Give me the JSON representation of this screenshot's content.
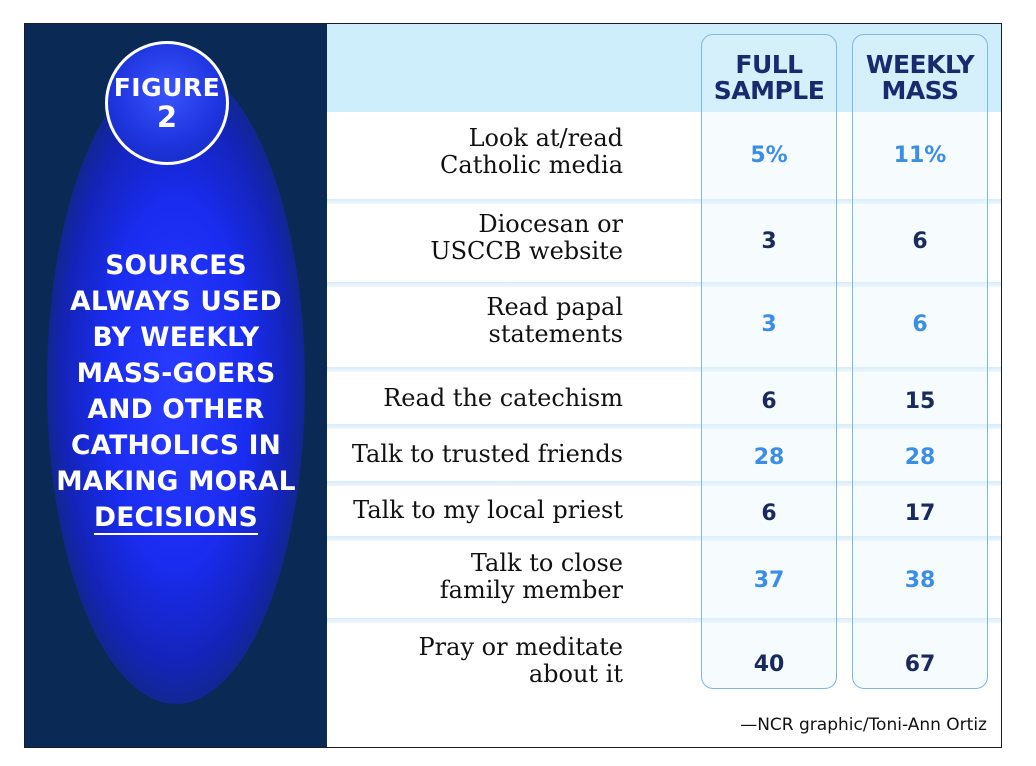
{
  "figure": {
    "label": "FIGURE",
    "number": "2"
  },
  "headline": {
    "lines": [
      "SOURCES",
      "ALWAYS USED",
      "BY WEEKLY",
      "MASS-GOERS",
      "AND OTHER",
      "CATHOLICS IN",
      "MAKING MORAL"
    ],
    "last_line": "DECISIONS"
  },
  "columns": [
    {
      "line1": "FULL",
      "line2": "SAMPLE"
    },
    {
      "line1": "WEEKLY",
      "line2": "MASS"
    }
  ],
  "credit": "—NCR graphic/Toni-Ann Ortiz",
  "colors": {
    "left_panel": "#0a2a55",
    "glow": "#1a2cf0",
    "header_band": "#cdeefa",
    "highlight_value": "#3a8ee6",
    "dark_value": "#1a2a5e"
  },
  "chart_data": {
    "type": "table",
    "title": "SOURCES ALWAYS USED BY WEEKLY MASS-GOERS AND OTHER CATHOLICS IN MAKING MORAL DECISIONS",
    "columns": [
      "FULL SAMPLE",
      "WEEKLY MASS"
    ],
    "rows": [
      {
        "label_lines": [
          "Look at/read",
          "Catholic media"
        ],
        "full_sample": "5%",
        "weekly_mass": "11%"
      },
      {
        "label_lines": [
          "Diocesan or",
          "USCCB website"
        ],
        "full_sample": "3",
        "weekly_mass": "6"
      },
      {
        "label_lines": [
          "Read papal",
          "statements"
        ],
        "full_sample": "3",
        "weekly_mass": "6"
      },
      {
        "label_lines": [
          "Read the catechism"
        ],
        "full_sample": "6",
        "weekly_mass": "15"
      },
      {
        "label_lines": [
          "Talk to trusted friends"
        ],
        "full_sample": "28",
        "weekly_mass": "28"
      },
      {
        "label_lines": [
          "Talk to my local priest"
        ],
        "full_sample": "6",
        "weekly_mass": "17"
      },
      {
        "label_lines": [
          "Talk to close",
          "family member"
        ],
        "full_sample": "37",
        "weekly_mass": "38"
      },
      {
        "label_lines": [
          "Pray or meditate",
          "about it"
        ],
        "full_sample": "40",
        "weekly_mass": "67"
      }
    ]
  }
}
